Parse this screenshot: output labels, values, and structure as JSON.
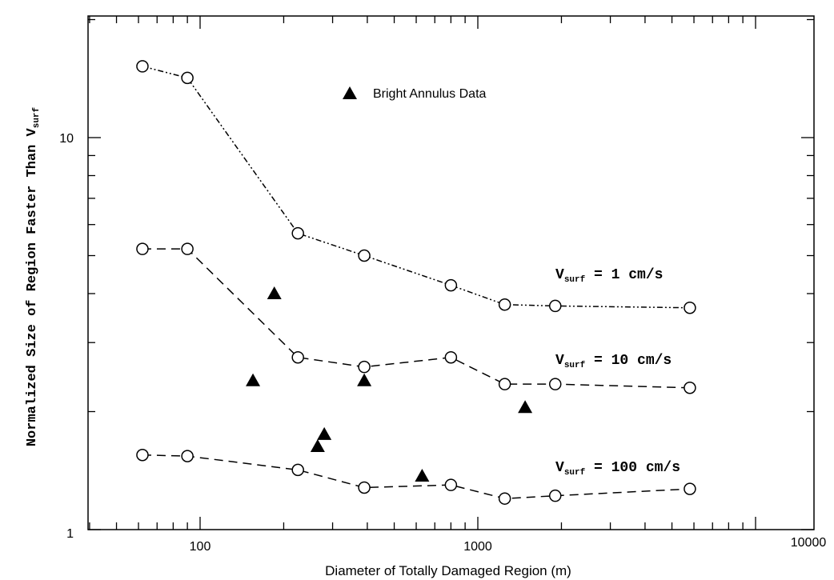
{
  "chart_data": {
    "type": "line",
    "title": "",
    "xlabel": "Diameter of Totally Damaged Region (m)",
    "ylabel": "Normalized Size of Region Faster Than V",
    "ylabel_sub": "surf",
    "x_scale": "log",
    "y_scale": "log",
    "xlim": [
      40,
      10000
    ],
    "ylim": [
      1,
      20
    ],
    "x_tick_labels": [
      "100",
      "1000",
      "10000"
    ],
    "y_tick_labels": [
      "1",
      "10"
    ],
    "grid": false,
    "legend": {
      "position": "top-center",
      "entries": [
        {
          "label": "Bright Annulus Data",
          "marker": "filled-triangle"
        }
      ]
    },
    "series": [
      {
        "label_main": "V",
        "label_sub": "surf",
        "label_rest": " = 1 cm/s",
        "style": "dash-dot-dot",
        "marker": "open-circle",
        "x": [
          62,
          90,
          225,
          390,
          800,
          1250,
          1900,
          5800
        ],
        "y": [
          15.2,
          14.2,
          5.7,
          5.0,
          4.2,
          3.75,
          3.72,
          3.68
        ]
      },
      {
        "label_main": "V",
        "label_sub": "surf",
        "label_rest": " = 10 cm/s",
        "style": "dashed",
        "marker": "open-circle",
        "x": [
          62,
          90,
          225,
          390,
          800,
          1250,
          1900,
          5800
        ],
        "y": [
          5.2,
          5.2,
          2.75,
          2.6,
          2.75,
          2.35,
          2.35,
          2.3
        ]
      },
      {
        "label_main": "V",
        "label_sub": "surf",
        "label_rest": " = 100 cm/s",
        "style": "dashed",
        "marker": "open-circle",
        "x": [
          62,
          90,
          225,
          390,
          800,
          1250,
          1900,
          5800
        ],
        "y": [
          1.55,
          1.54,
          1.42,
          1.28,
          1.3,
          1.2,
          1.22,
          1.27
        ]
      },
      {
        "name": "Bright Annulus Data",
        "style": "none",
        "marker": "filled-triangle",
        "x": [
          155,
          185,
          265,
          280,
          390,
          630,
          1480
        ],
        "y": [
          2.4,
          4.0,
          1.63,
          1.75,
          2.4,
          1.37,
          2.05
        ]
      }
    ]
  }
}
